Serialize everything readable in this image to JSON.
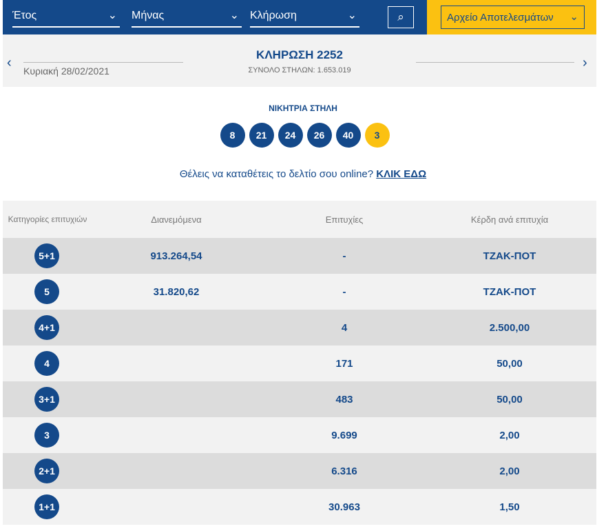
{
  "filters": {
    "year": "Έτος",
    "month": "Μήνας",
    "draw": "Κλήρωση",
    "search_icon": "search-icon",
    "archive": "Αρχείο Αποτελεσμάτων"
  },
  "draw": {
    "title": "ΚΛΗΡΩΣΗ 2252",
    "date": "Κυριακή 28/02/2021",
    "total": "ΣΥΝΟΛΟ ΣΤΗΛΩΝ: 1.653.019",
    "prev": "‹",
    "next": "›"
  },
  "winning": {
    "title": "ΝΙΚΗΤΡΙΑ ΣΤΗΛΗ",
    "numbers": [
      "8",
      "21",
      "24",
      "26",
      "40"
    ],
    "joker": "3"
  },
  "online": {
    "text": "Θέλεις να καταθέτεις το δελτίο σου online?",
    "link": "ΚΛΙΚ ΕΔΩ"
  },
  "colors": {
    "primary": "#14498a",
    "accent": "#fbc111"
  },
  "table": {
    "headers": [
      "Κατηγορίες επιτυχιών",
      "Διανεμόμενα",
      "Επιτυχίες",
      "Κέρδη ανά επιτυχία"
    ],
    "rows": [
      {
        "cat": "5+1",
        "dist": "913.264,54",
        "wins": "-",
        "prize": "ΤΖΑΚ-ΠΟΤ"
      },
      {
        "cat": "5",
        "dist": "31.820,62",
        "wins": "-",
        "prize": "ΤΖΑΚ-ΠΟΤ"
      },
      {
        "cat": "4+1",
        "dist": "",
        "wins": "4",
        "prize": "2.500,00"
      },
      {
        "cat": "4",
        "dist": "",
        "wins": "171",
        "prize": "50,00"
      },
      {
        "cat": "3+1",
        "dist": "",
        "wins": "483",
        "prize": "50,00"
      },
      {
        "cat": "3",
        "dist": "",
        "wins": "9.699",
        "prize": "2,00"
      },
      {
        "cat": "2+1",
        "dist": "",
        "wins": "6.316",
        "prize": "2,00"
      },
      {
        "cat": "1+1",
        "dist": "",
        "wins": "30.963",
        "prize": "1,50"
      }
    ]
  }
}
